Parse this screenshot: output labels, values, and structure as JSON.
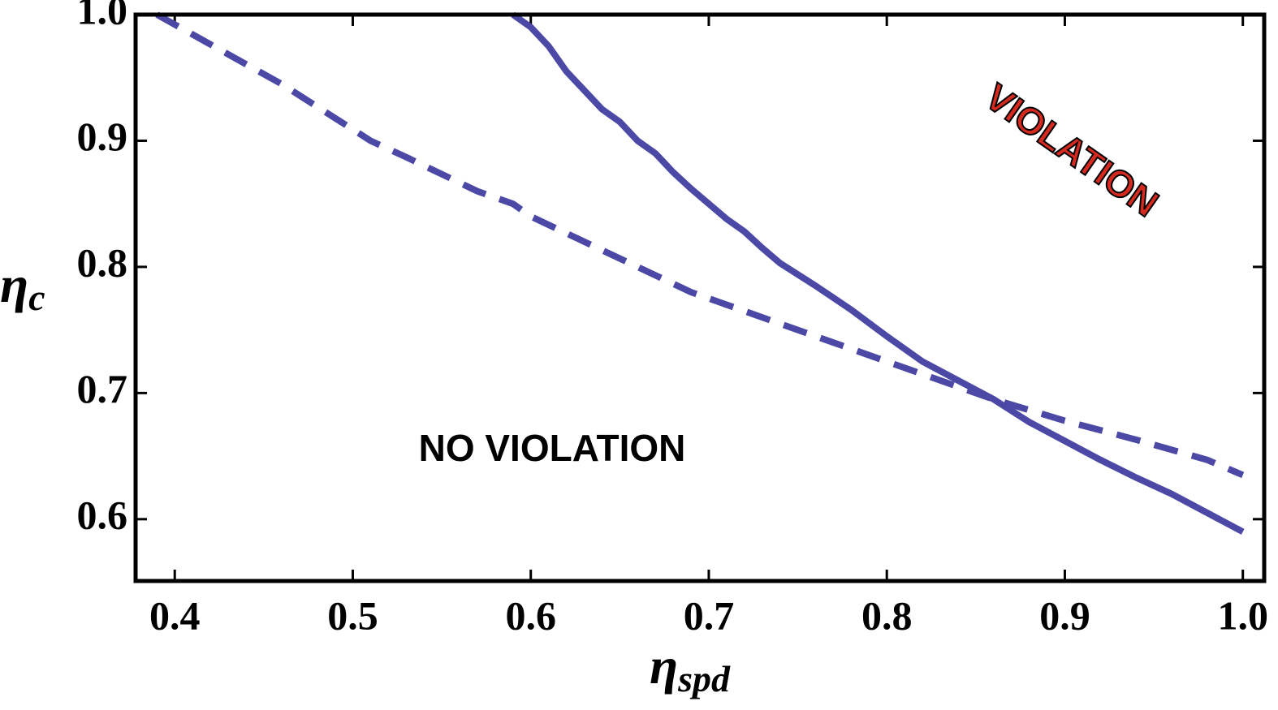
{
  "chart_data": {
    "type": "line",
    "x_label_symbol": "η",
    "x_label_subscript": "spd",
    "y_label_symbol": "η",
    "y_label_subscript": "c",
    "annotations": [
      "VIOLATION",
      "NO VIOLATION"
    ],
    "xlim": [
      0.378,
      1.012
    ],
    "ylim": [
      0.551,
      1.0
    ],
    "xticks": [
      0.4,
      0.5,
      0.6,
      0.7,
      0.8,
      0.9,
      {
        "value": 1.0,
        "label": "1.0"
      }
    ],
    "yticks": [
      0.6,
      0.7,
      0.8,
      0.9,
      {
        "value": 1.0,
        "label": "1.0"
      }
    ],
    "series": [
      {
        "style": "solid",
        "color": "#4b48a6",
        "x": [
          0.59,
          0.6,
          0.61,
          0.62,
          0.63,
          0.64,
          0.65,
          0.66,
          0.67,
          0.68,
          0.69,
          0.7,
          0.71,
          0.72,
          0.73,
          0.74,
          0.76,
          0.78,
          0.8,
          0.82,
          0.84,
          0.86,
          0.88,
          0.9,
          0.92,
          0.94,
          0.96,
          0.98,
          1.0
        ],
        "values": [
          1.0,
          0.99,
          0.975,
          0.955,
          0.94,
          0.925,
          0.915,
          0.9,
          0.89,
          0.875,
          0.862,
          0.85,
          0.838,
          0.828,
          0.815,
          0.803,
          0.785,
          0.766,
          0.745,
          0.725,
          0.71,
          0.695,
          0.677,
          0.662,
          0.647,
          0.633,
          0.62,
          0.605,
          0.59
        ]
      },
      {
        "style": "dashed",
        "color": "#4b48a6",
        "x": [
          0.39,
          0.46,
          0.51,
          0.53,
          0.57,
          0.59,
          0.6,
          0.66,
          0.69,
          0.73,
          0.78,
          0.82,
          0.86,
          0.9,
          0.94,
          0.98,
          1.0
        ],
        "values": [
          1.0,
          0.945,
          0.9,
          0.887,
          0.86,
          0.85,
          0.84,
          0.8,
          0.78,
          0.76,
          0.735,
          0.715,
          0.695,
          0.678,
          0.663,
          0.647,
          0.635
        ]
      }
    ]
  }
}
